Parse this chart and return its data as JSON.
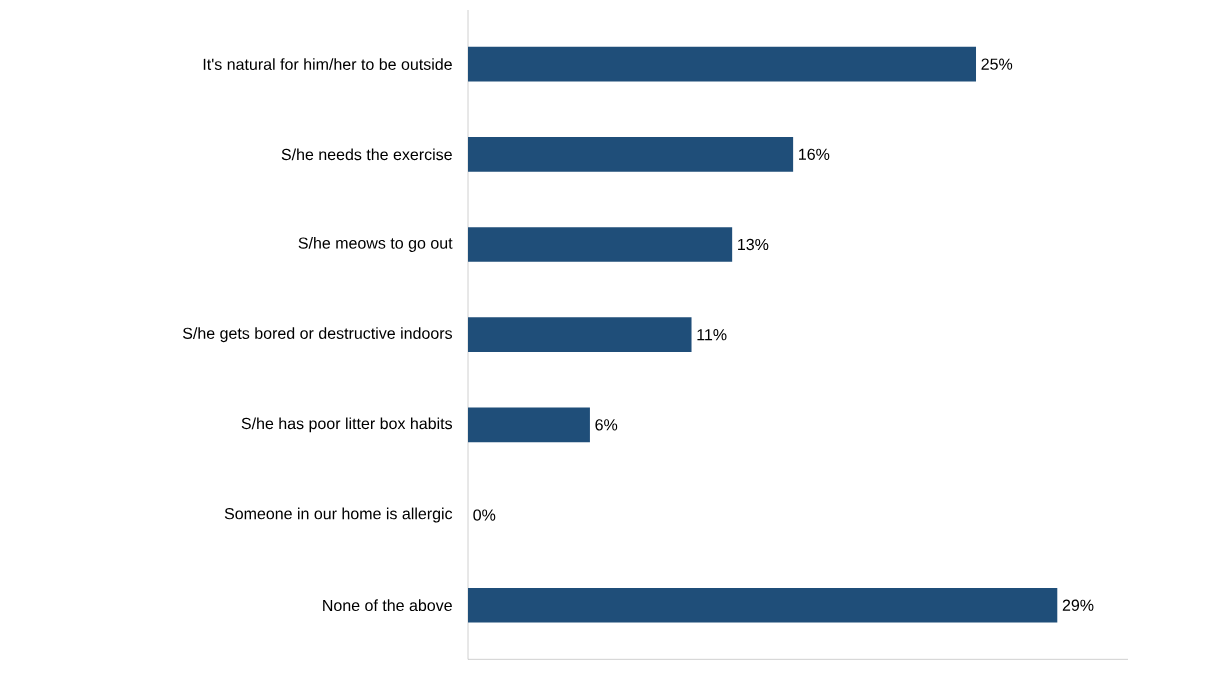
{
  "chart_data": {
    "type": "bar",
    "orientation": "horizontal",
    "categories": [
      "It's natural for him/her to be outside",
      "S/he needs the exercise",
      "S/he meows to go out",
      "S/he gets bored or destructive indoors",
      "S/he has poor litter box habits",
      "Someone in our home is allergic",
      "None of the above"
    ],
    "values": [
      25,
      16,
      13,
      11,
      6,
      0,
      29
    ],
    "value_labels": [
      "25%",
      "16%",
      "13%",
      "11%",
      "6%",
      "0%",
      "29%"
    ],
    "color": "#1f4e79"
  }
}
